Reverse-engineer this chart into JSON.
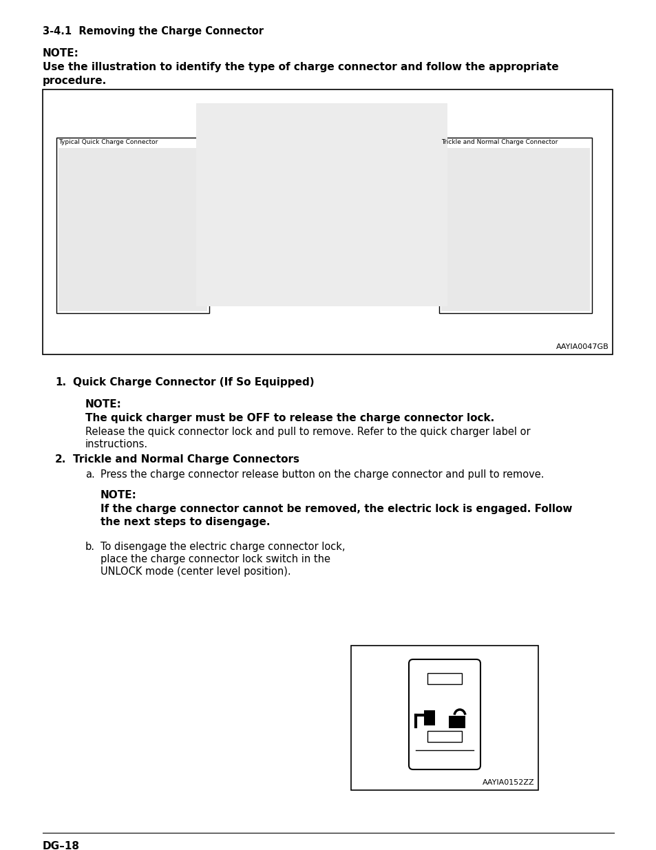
{
  "title": "3-4.1  Removing the Charge Connector",
  "note_intro": "NOTE:",
  "note_bold1": "Use the illustration to identify the type of charge connector and follow the appropriate",
  "note_bold2": "procedure.",
  "fig1_label_left": "Typical Quick Charge Connector",
  "fig1_label_right": "Trickle and Normal Charge Connector",
  "fig1_code": "AAYIA0047GB",
  "item1_heading": "Quick Charge Connector (If So Equipped)",
  "item1_note_label": "NOTE:",
  "item1_note_bold": "The quick charger must be OFF to release the charge connector lock.",
  "item1_note_text1": "Release the quick connector lock and pull to remove. Refer to the quick charger label or",
  "item1_note_text2": "instructions.",
  "item2_heading": "Trickle and Normal Charge Connectors",
  "item2a_text": "Press the charge connector release button on the charge connector and pull to remove.",
  "item2a_note_label": "NOTE:",
  "item2a_note_bold1": "If the charge connector cannot be removed, the electric lock is engaged. Follow",
  "item2a_note_bold2": "the next steps to disengage.",
  "item2b_line1": "To disengage the electric charge connector lock,",
  "item2b_line2": "place the charge connector lock switch in the",
  "item2b_line3": "UNLOCK mode (center level position).",
  "fig2_code": "AAYIA0152ZZ",
  "footer": "DG–18",
  "bg_color": "#ffffff"
}
